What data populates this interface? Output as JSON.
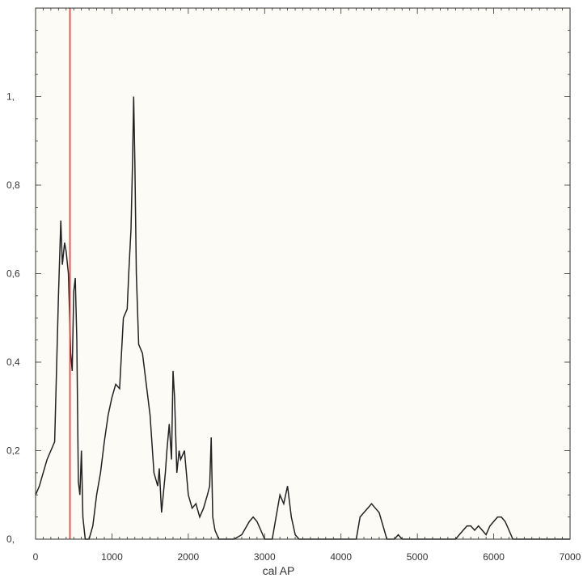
{
  "chart_data": {
    "type": "line",
    "title": "",
    "xlabel": "cal AP",
    "ylabel": "",
    "xlim": [
      0,
      7000
    ],
    "ylim": [
      0,
      1.2
    ],
    "x_ticks": [
      0,
      1000,
      2000,
      3000,
      4000,
      5000,
      6000,
      7000
    ],
    "x_tick_labels": [
      "0",
      "1000",
      "2000",
      "3000",
      "4000",
      "5000",
      "6000",
      "7000"
    ],
    "y_ticks": [
      0,
      0.2,
      0.4,
      0.6,
      0.8,
      1.0
    ],
    "y_tick_labels": [
      "0,",
      "0,2",
      "0,4",
      "0,6",
      "0,8",
      "1,"
    ],
    "grid": false,
    "background_color": "#fdfbf6",
    "line_color": "#222222",
    "marker_color": "#e04040",
    "marker_x": 450,
    "series": [
      {
        "x": [
          0,
          50,
          100,
          150,
          200,
          250,
          300,
          330,
          350,
          380,
          400,
          430,
          460,
          480,
          500,
          520,
          540,
          560,
          580,
          600,
          620,
          650,
          700,
          750,
          800,
          850,
          900,
          950,
          1000,
          1050,
          1100,
          1150,
          1200,
          1220,
          1250,
          1270,
          1285,
          1300,
          1320,
          1350,
          1400,
          1450,
          1500,
          1550,
          1600,
          1620,
          1650,
          1700,
          1720,
          1750,
          1780,
          1800,
          1820,
          1850,
          1880,
          1900,
          1950,
          2000,
          2050,
          2100,
          2150,
          2200,
          2250,
          2280,
          2300,
          2320,
          2350,
          2400,
          2500,
          2600,
          2700,
          2800,
          2850,
          2900,
          2950,
          3000,
          3100,
          3150,
          3200,
          3250,
          3300,
          3350,
          3400,
          3450,
          3500,
          3600,
          3700,
          3800,
          3900,
          4000,
          4100,
          4200,
          4250,
          4300,
          4350,
          4400,
          4450,
          4500,
          4550,
          4600,
          4700,
          4750,
          4800,
          5000,
          5200,
          5400,
          5500,
          5600,
          5650,
          5700,
          5750,
          5800,
          5850,
          5900,
          5950,
          6000,
          6050,
          6100,
          6150,
          6200,
          6250,
          6400,
          7000
        ],
        "y": [
          0.1,
          0.12,
          0.15,
          0.18,
          0.2,
          0.22,
          0.55,
          0.72,
          0.62,
          0.67,
          0.65,
          0.6,
          0.42,
          0.38,
          0.56,
          0.59,
          0.45,
          0.13,
          0.1,
          0.2,
          0.05,
          0.0,
          0.0,
          0.03,
          0.1,
          0.15,
          0.22,
          0.28,
          0.32,
          0.35,
          0.34,
          0.5,
          0.52,
          0.6,
          0.7,
          0.85,
          1.0,
          0.85,
          0.6,
          0.44,
          0.42,
          0.35,
          0.28,
          0.15,
          0.12,
          0.16,
          0.06,
          0.15,
          0.2,
          0.26,
          0.18,
          0.38,
          0.32,
          0.15,
          0.2,
          0.18,
          0.2,
          0.1,
          0.07,
          0.08,
          0.05,
          0.07,
          0.1,
          0.12,
          0.23,
          0.05,
          0.02,
          0.0,
          0.0,
          0.0,
          0.01,
          0.04,
          0.05,
          0.04,
          0.02,
          0.0,
          0.0,
          0.05,
          0.1,
          0.08,
          0.12,
          0.05,
          0.01,
          0.0,
          0.0,
          0.0,
          0.0,
          0.0,
          0.0,
          0.0,
          0.0,
          0.0,
          0.05,
          0.06,
          0.07,
          0.08,
          0.07,
          0.06,
          0.03,
          0.0,
          0.0,
          0.01,
          0.0,
          0.0,
          0.0,
          0.0,
          0.0,
          0.02,
          0.03,
          0.03,
          0.02,
          0.03,
          0.02,
          0.01,
          0.03,
          0.04,
          0.05,
          0.05,
          0.04,
          0.02,
          0.0,
          0.0,
          0.0
        ]
      }
    ]
  }
}
